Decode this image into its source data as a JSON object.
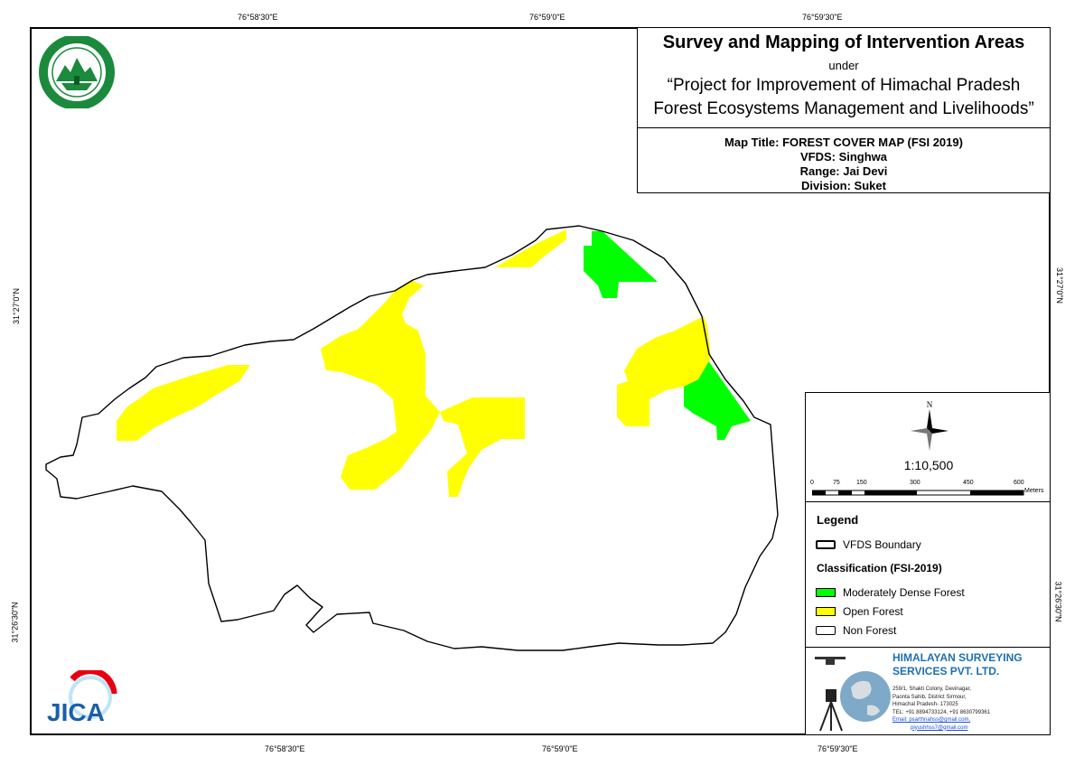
{
  "graticule": {
    "top": [
      "76°58'30\"E",
      "76°59'0\"E",
      "76°59'30\"E"
    ],
    "bottom": [
      "76°58'30\"E",
      "76°59'0\"E",
      "76°59'30\"E"
    ],
    "left": [
      "31°27'0\"N",
      "31°26'30\"N"
    ],
    "right": [
      "31°27'0\"N",
      "31°26'30\"N"
    ]
  },
  "title": {
    "main": "Survey and Mapping of Intervention Areas",
    "under": "under",
    "project_line1": "“Project for Improvement of Himachal Pradesh",
    "project_line2": "Forest Ecosystems Management and Livelihoods”"
  },
  "map_info": {
    "map_title": "Map Title: FOREST COVER MAP (FSI 2019)",
    "vfds": "VFDS: Singhwa",
    "range": "Range: Jai Devi",
    "division": "Division: Suket"
  },
  "north_arrow": {
    "label": "N"
  },
  "scale": {
    "ratio": "1:10,500",
    "ticks": [
      "0",
      "75",
      "150",
      "300",
      "450",
      "600"
    ],
    "unit": "Meters"
  },
  "legend": {
    "title": "Legend",
    "boundary_label": "VFDS Boundary",
    "classification_title": "Classification (FSI-2019)",
    "items": [
      {
        "label": "Moderately Dense Forest",
        "color": "#00ff00"
      },
      {
        "label": "Open Forest",
        "color": "#ffff00"
      },
      {
        "label": "Non Forest",
        "color": "#ffffff"
      }
    ]
  },
  "company": {
    "name_line1": "HIMALAYAN SURVEYING",
    "name_line2": "SERVICES PVT. LTD.",
    "address_line1": "259/1, Shakti Colony, Devinagar,",
    "address_line2": "Paonta Sahib, District Sirmour,",
    "address_line3": "Himachal Pradesh- 173025",
    "phone": "TEL: +91 8894733124, +91 8630799361",
    "email1": "Email: psarthnahss@gmail.com,",
    "email2": "piyushhss7@gmail.com"
  },
  "logos": {
    "forest_dept_text": "वन विभाग हिमाचल प्रदेश",
    "jica": "JICA"
  },
  "colors": {
    "moderately_dense": "#00ff00",
    "open_forest": "#ffff00",
    "non_forest": "#ffffff",
    "company_blue": "#1f6fb0"
  }
}
